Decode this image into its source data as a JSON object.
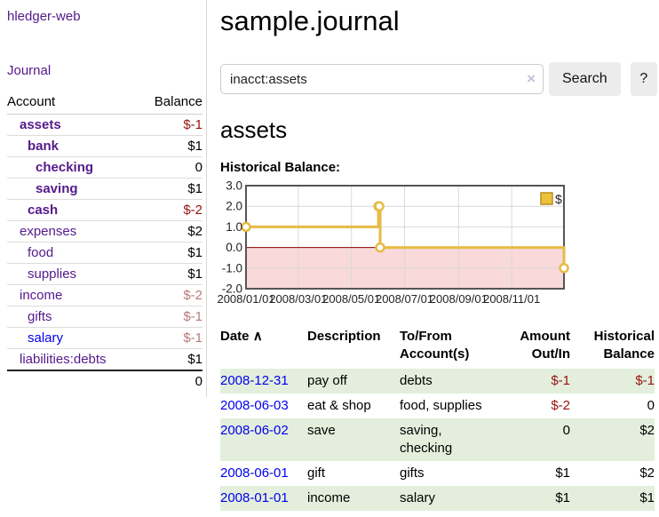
{
  "app_title": "hledger-web",
  "sidebar": {
    "journal_link": "Journal",
    "accounts_table": {
      "headers": {
        "account": "Account",
        "balance": "Balance"
      },
      "rows": [
        {
          "account": "assets",
          "indent": 1,
          "selected": true,
          "link": "purple",
          "balance": "$-1",
          "tone": "strong-negative"
        },
        {
          "account": "bank",
          "indent": 2,
          "selected": true,
          "link": "purple",
          "balance": "$1",
          "tone": "normal"
        },
        {
          "account": "checking",
          "indent": 3,
          "selected": true,
          "link": "purple",
          "balance": "0",
          "tone": "normal"
        },
        {
          "account": "saving",
          "indent": 3,
          "selected": true,
          "link": "purple",
          "balance": "$1",
          "tone": "normal"
        },
        {
          "account": "cash",
          "indent": 2,
          "selected": true,
          "link": "purple",
          "balance": "$-2",
          "tone": "strong-negative"
        },
        {
          "account": "expenses",
          "indent": 1,
          "selected": false,
          "link": "purple",
          "balance": "$2",
          "tone": "normal"
        },
        {
          "account": "food",
          "indent": 2,
          "selected": false,
          "link": "purple",
          "balance": "$1",
          "tone": "normal"
        },
        {
          "account": "supplies",
          "indent": 2,
          "selected": false,
          "link": "purple",
          "balance": "$1",
          "tone": "normal"
        },
        {
          "account": "income",
          "indent": 1,
          "selected": false,
          "link": "purple",
          "balance": "$-2",
          "tone": "soft-negative"
        },
        {
          "account": "gifts",
          "indent": 2,
          "selected": false,
          "link": "purple",
          "balance": "$-1",
          "tone": "soft-negative"
        },
        {
          "account": "salary",
          "indent": 2,
          "selected": false,
          "link": "blue",
          "balance": "$-1",
          "tone": "soft-negative"
        },
        {
          "account": "liabilities:debts",
          "indent": 1,
          "selected": false,
          "link": "purple",
          "balance": "$1",
          "tone": "normal"
        }
      ],
      "total": "0"
    }
  },
  "main": {
    "title": "sample.journal",
    "search": {
      "value": "inacct:assets",
      "clear_icon": "×",
      "search_button": "Search",
      "help_button": "?"
    },
    "account_heading": "assets",
    "chart_title": "Historical Balance:"
  },
  "chart_data": {
    "type": "line",
    "step": true,
    "series": [
      {
        "name": "$",
        "x": [
          "2008-01-01",
          "2008-06-01",
          "2008-06-02",
          "2008-06-03",
          "2008-12-31"
        ],
        "values": [
          1,
          2,
          2,
          0,
          -1
        ]
      }
    ],
    "x_tick_labels": [
      "2008/01/01",
      "2008/03/01",
      "2008/05/01",
      "2008/07/01",
      "2008/09/01",
      "2008/11/01"
    ],
    "y_tick_labels": [
      "3.0",
      "2.0",
      "1.0",
      "0.0",
      "-1.0",
      "-2.0"
    ],
    "ylim": [
      -2,
      3
    ],
    "xlim": [
      "2008-01-01",
      "2008-12-31"
    ],
    "legend": {
      "label": "$",
      "position": "top-right"
    },
    "grid": true,
    "negative_region_shaded": true,
    "zero_line": true
  },
  "register": {
    "headers": {
      "date": "Date",
      "sort_arrow": "∧",
      "description": "Description",
      "accounts": "To/From Account(s)",
      "amount": "Amount Out/In",
      "balance": "Historical Balance"
    },
    "rows": [
      {
        "date": "2008-12-31",
        "description": "pay off",
        "accounts": "debts",
        "amount": "$-1",
        "balance": "$-1",
        "amount_tone": "negative",
        "balance_tone": "negative"
      },
      {
        "date": "2008-06-03",
        "description": "eat & shop",
        "accounts": "food, supplies",
        "amount": "$-2",
        "balance": "0",
        "amount_tone": "negative",
        "balance_tone": "normal"
      },
      {
        "date": "2008-06-02",
        "description": "save",
        "accounts": "saving, checking",
        "amount": "0",
        "balance": "$2",
        "amount_tone": "normal",
        "balance_tone": "normal"
      },
      {
        "date": "2008-06-01",
        "description": "gift",
        "accounts": "gifts",
        "amount": "$1",
        "balance": "$2",
        "amount_tone": "normal",
        "balance_tone": "normal"
      },
      {
        "date": "2008-01-01",
        "description": "income",
        "accounts": "salary",
        "amount": "$1",
        "balance": "$1",
        "amount_tone": "normal",
        "balance_tone": "normal"
      }
    ]
  },
  "colors": {
    "link_purple": "#551a8b",
    "link_blue": "#0000ee",
    "negative_strong": "#991111",
    "negative_soft": "#b97a7a",
    "row_green": "#e3efdc",
    "chart_line": "#e6bb45",
    "chart_marker_fill": "#ffffff",
    "chart_negative_region": "#f9d9d9",
    "chart_zero_line": "#8b0000",
    "chart_grid": "#d9d9d9",
    "chart_border": "#555555",
    "legend_fill": "#ecc23d",
    "legend_border": "#b8901f"
  }
}
